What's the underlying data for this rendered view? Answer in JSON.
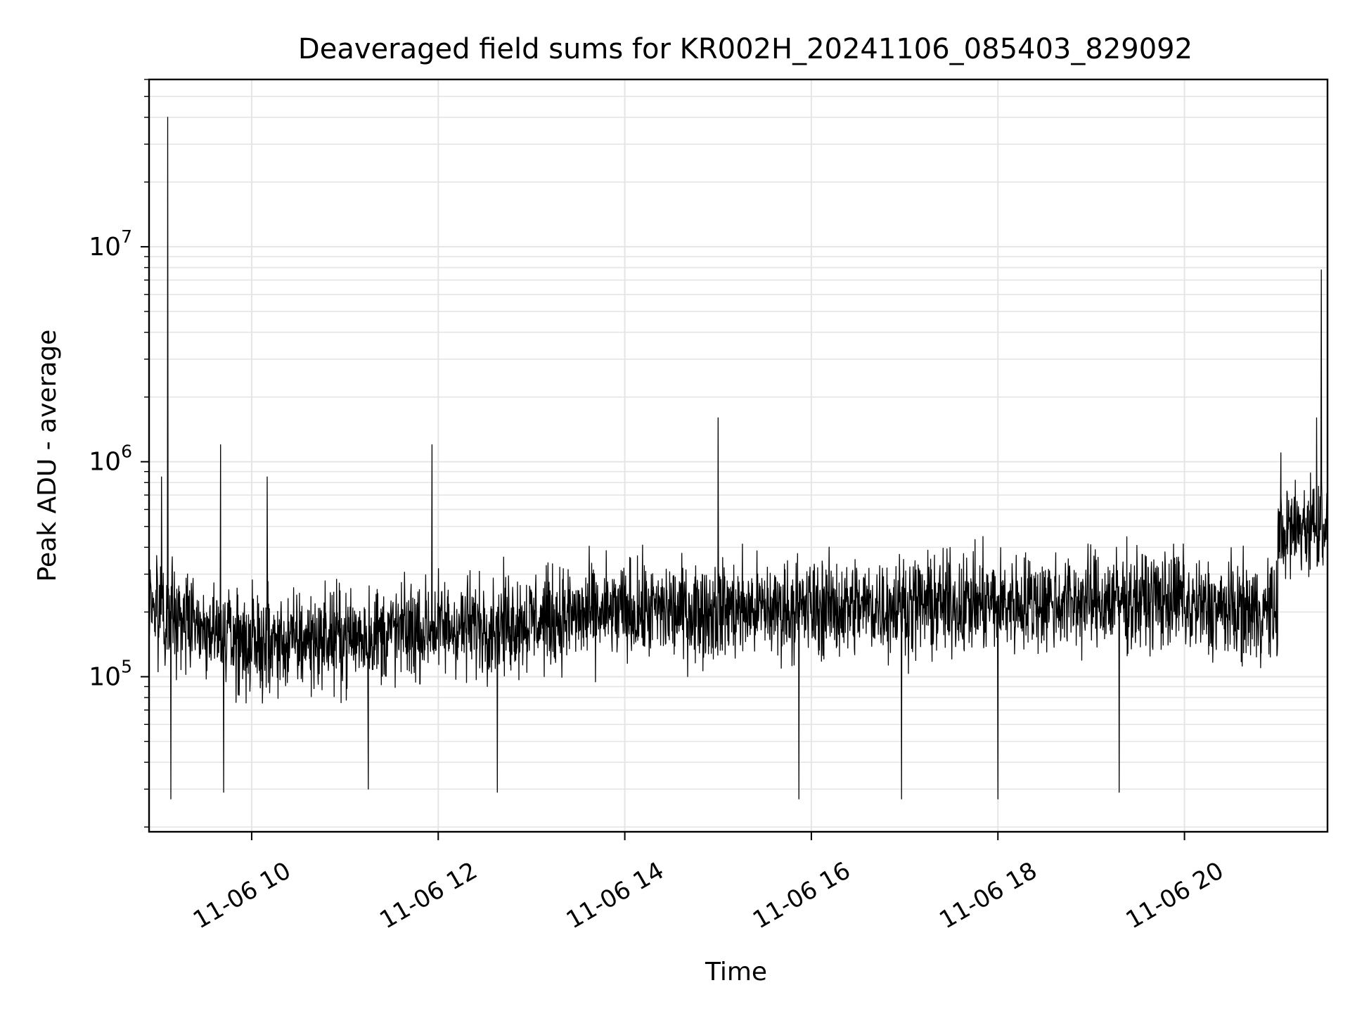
{
  "chart_data": {
    "type": "line",
    "title": "Deaveraged field sums for KR002H_20241106_085403_829092",
    "xlabel": "Time",
    "ylabel": "Peak ADU - average",
    "x_axis": {
      "kind": "time",
      "range": [
        "2024-11-06T08:54:00",
        "2024-11-06T21:32:00"
      ],
      "ticks": [
        {
          "value": "2024-11-06T10:00:00",
          "label": "11-06 10"
        },
        {
          "value": "2024-11-06T12:00:00",
          "label": "11-06 12"
        },
        {
          "value": "2024-11-06T14:00:00",
          "label": "11-06 14"
        },
        {
          "value": "2024-11-06T16:00:00",
          "label": "11-06 16"
        },
        {
          "value": "2024-11-06T18:00:00",
          "label": "11-06 18"
        },
        {
          "value": "2024-11-06T20:00:00",
          "label": "11-06 20"
        }
      ]
    },
    "y_axis": {
      "scale": "log",
      "range": [
        19000,
        60000000
      ],
      "ticks": [
        {
          "value": 100000,
          "base": "10",
          "exp": "5"
        },
        {
          "value": 1000000,
          "base": "10",
          "exp": "6"
        },
        {
          "value": 10000000,
          "base": "10",
          "exp": "7"
        }
      ]
    },
    "grid": true,
    "legend": "none",
    "line_color": "#000000",
    "grid_color": "#e5e5e5",
    "series": [
      {
        "sampling_interval_seconds": 10,
        "note_values_approximate": true,
        "segments": [
          {
            "start": "2024-11-06T08:54:00",
            "end": "2024-11-06T10:00:00",
            "typical_from": 220000,
            "typical_to": 140000
          },
          {
            "start": "2024-11-06T10:00:00",
            "end": "2024-11-06T14:00:00",
            "typical_from": 140000,
            "typical_to": 200000
          },
          {
            "start": "2024-11-06T14:00:00",
            "end": "2024-11-06T20:00:00",
            "typical_from": 200000,
            "typical_to": 230000
          },
          {
            "start": "2024-11-06T20:00:00",
            "end": "2024-11-06T21:00:00",
            "typical_from": 210000,
            "typical_to": 200000
          },
          {
            "start": "2024-11-06T21:00:00",
            "end": "2024-11-06T21:32:00",
            "typical_from": 450000,
            "typical_to": 550000
          }
        ],
        "spikes": [
          {
            "x": "2024-11-06T09:06:00",
            "y": 40000000
          },
          {
            "x": "2024-11-06T09:02:00",
            "y": 850000
          },
          {
            "x": "2024-11-06T09:40:00",
            "y": 1200000
          },
          {
            "x": "2024-11-06T10:10:00",
            "y": 850000
          },
          {
            "x": "2024-11-06T11:56:00",
            "y": 1200000
          },
          {
            "x": "2024-11-06T15:00:00",
            "y": 1600000
          },
          {
            "x": "2024-11-06T21:02:00",
            "y": 1100000
          },
          {
            "x": "2024-11-06T21:25:00",
            "y": 1600000
          },
          {
            "x": "2024-11-06T21:28:00",
            "y": 7800000
          }
        ],
        "dips": [
          {
            "x": "2024-11-06T09:08:00",
            "y": 27000
          },
          {
            "x": "2024-11-06T09:42:00",
            "y": 29000
          },
          {
            "x": "2024-11-06T11:15:00",
            "y": 30000
          },
          {
            "x": "2024-11-06T12:38:00",
            "y": 29000
          },
          {
            "x": "2024-11-06T15:52:00",
            "y": 27000
          },
          {
            "x": "2024-11-06T16:58:00",
            "y": 27000
          },
          {
            "x": "2024-11-06T18:00:00",
            "y": 27000
          },
          {
            "x": "2024-11-06T19:18:00",
            "y": 29000
          }
        ]
      }
    ]
  }
}
